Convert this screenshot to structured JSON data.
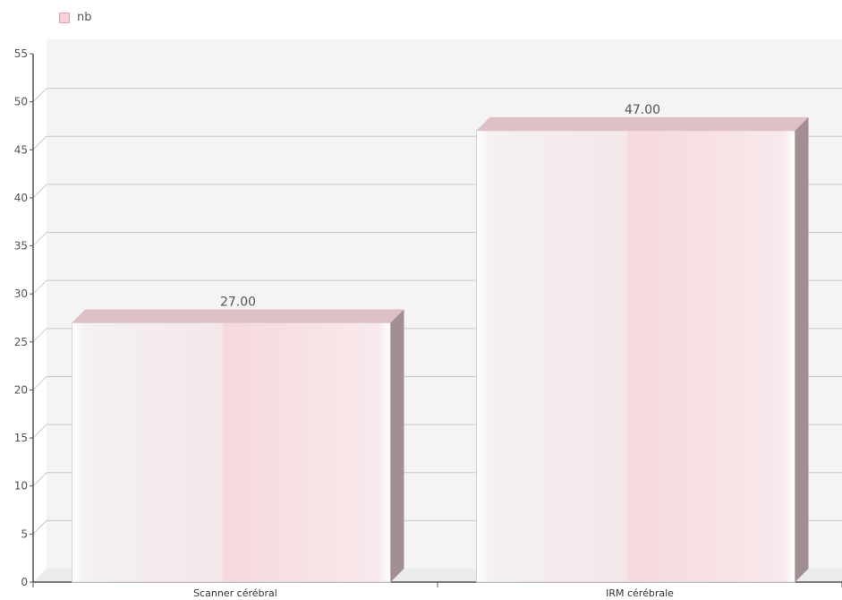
{
  "chart_data": {
    "type": "bar",
    "categories": [
      "Scanner cérébral",
      "IRM cérébrale"
    ],
    "series": [
      {
        "name": "nb",
        "values": [
          27,
          47
        ],
        "value_labels": [
          "27.00",
          "47.00"
        ]
      }
    ],
    "ylim": [
      0,
      55
    ],
    "yticks": [
      0,
      5,
      10,
      15,
      20,
      25,
      30,
      35,
      40,
      45,
      50,
      55
    ],
    "grid": true,
    "legend": "top-left",
    "style": "3d-bar"
  },
  "colors": {
    "plot_bg": "#f4f4f4",
    "grid": "#c8c8c8",
    "axis": "#555555",
    "bar_light": "#f5f1f1",
    "bar_pink": "#f6d8dd",
    "bar_top": "#dfc0c4",
    "bar_side": "#a18f92",
    "legend_swatch": "#f6d3d7"
  }
}
